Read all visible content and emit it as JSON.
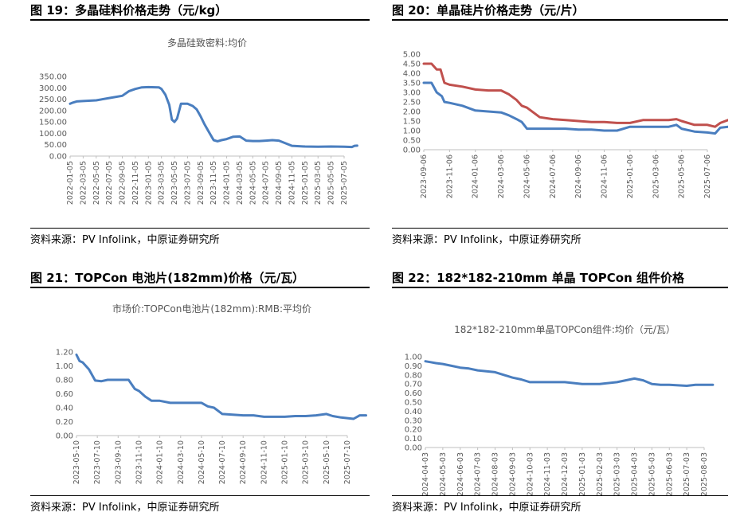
{
  "charts": [
    {
      "figure_title": "图 19：多晶硅料价格走势（元/kg）",
      "source": "资料来源：PV Infolink，中原证券研究所",
      "chart_data": {
        "type": "line",
        "title": "多晶硅致密料:均价",
        "xlabel": "",
        "ylabel": "",
        "ylim": [
          0,
          350
        ],
        "yticks": [
          "0.00",
          "50.00",
          "100.00",
          "150.00",
          "200.00",
          "250.00",
          "300.00",
          "350.00"
        ],
        "xtick_labels": [
          "2022-01-05",
          "2022-03-05",
          "2022-05-05",
          "2022-07-05",
          "2022-09-05",
          "2022-11-05",
          "2023-01-05",
          "2023-03-05",
          "2023-05-05",
          "2023-07-05",
          "2023-09-05",
          "2023-11-05",
          "2024-01-05",
          "2024-03-05",
          "2024-05-05",
          "2024-07-05",
          "2024-09-05",
          "2024-11-05",
          "2025-01-05",
          "2025-03-05",
          "2025-05-05",
          "2025-07-05"
        ],
        "grid": false,
        "series": [
          {
            "color": "#4a7ebf",
            "x": [
              0,
              0.2,
              0.5,
              1,
              2,
              3,
              4,
              4.5,
              5,
              5.5,
              6,
              6.8,
              7,
              7.3,
              7.6,
              7.8,
              8,
              8.2,
              8.5,
              9,
              9.4,
              9.7,
              10,
              10.3,
              10.6,
              11,
              11.3,
              11.6,
              12,
              12.5,
              13,
              13.5,
              14,
              14.5,
              15,
              15.5,
              16,
              17,
              18,
              19,
              20,
              21,
              21.6,
              21.8,
              22
            ],
            "y": [
              230,
              235,
              240,
              242,
              245,
              255,
              265,
              285,
              295,
              302,
              303,
              302,
              295,
              270,
              225,
              160,
              150,
              165,
              230,
              230,
              220,
              205,
              175,
              140,
              110,
              70,
              65,
              70,
              75,
              85,
              86,
              68,
              66,
              66,
              68,
              70,
              68,
              45,
              42,
              41,
              42,
              41,
              40,
              45,
              46
            ]
          }
        ]
      }
    },
    {
      "figure_title": "图 20：单晶硅片价格走势（元/片）",
      "source": "资料来源：PV Infolink，中原证券研究所",
      "chart_data": {
        "type": "line",
        "title": "",
        "xlabel": "",
        "ylabel": "",
        "ylim": [
          0,
          5
        ],
        "yticks": [
          "0.00",
          "0.50",
          "1.00",
          "1.50",
          "2.00",
          "2.50",
          "3.00",
          "3.50",
          "4.00",
          "4.50",
          "5.00"
        ],
        "xtick_labels": [
          "2023-09-06",
          "2023-11-06",
          "2024-01-06",
          "2024-03-06",
          "2024-05-06",
          "2024-07-06",
          "2024-09-06",
          "2024-11-06",
          "2025-01-06",
          "2025-03-06",
          "2025-05-06",
          "2025-07-06"
        ],
        "grid": false,
        "series": [
          {
            "color": "#c0504d",
            "x": [
              0,
              0.3,
              0.5,
              0.65,
              0.8,
              1,
              1.5,
              2,
              2.5,
              3,
              3.3,
              3.6,
              3.8,
              4,
              4.5,
              5,
              5.5,
              6,
              6.5,
              7,
              7.5,
              8,
              8.5,
              9,
              9.5,
              9.8,
              10,
              10.5,
              11,
              11.3,
              11.5,
              11.8,
              12
            ],
            "y": [
              4.5,
              4.5,
              4.2,
              4.2,
              3.5,
              3.4,
              3.3,
              3.15,
              3.1,
              3.1,
              2.9,
              2.6,
              2.3,
              2.2,
              1.7,
              1.6,
              1.55,
              1.5,
              1.45,
              1.45,
              1.4,
              1.4,
              1.55,
              1.55,
              1.55,
              1.6,
              1.5,
              1.3,
              1.3,
              1.2,
              1.4,
              1.55,
              1.6
            ]
          },
          {
            "color": "#4a7ebf",
            "x": [
              0,
              0.3,
              0.5,
              0.7,
              0.8,
              1,
              1.5,
              2,
              2.5,
              3,
              3.3,
              3.6,
              3.8,
              4,
              4.5,
              5,
              5.5,
              6,
              6.5,
              7,
              7.5,
              8,
              8.5,
              9,
              9.5,
              9.8,
              10,
              10.5,
              11,
              11.3,
              11.5,
              11.8,
              12
            ],
            "y": [
              3.5,
              3.5,
              3.0,
              2.8,
              2.5,
              2.45,
              2.3,
              2.05,
              2.0,
              1.95,
              1.8,
              1.6,
              1.45,
              1.1,
              1.1,
              1.1,
              1.1,
              1.05,
              1.05,
              1.0,
              1.0,
              1.2,
              1.2,
              1.2,
              1.2,
              1.3,
              1.1,
              0.95,
              0.9,
              0.85,
              1.15,
              1.2,
              1.25
            ]
          }
        ]
      }
    },
    {
      "figure_title": "图 21：TOPCon 电池片(182mm)价格（元/瓦）",
      "source": "资料来源：PV Infolink，中原证券研究所",
      "chart_data": {
        "type": "line",
        "title": "市场价:TOPCon电池片(182mm):RMB:平均价",
        "xlabel": "",
        "ylabel": "",
        "ylim": [
          0,
          1.2
        ],
        "yticks": [
          "0.00",
          "0.20",
          "0.40",
          "0.60",
          "0.80",
          "1.00",
          "1.20"
        ],
        "xtick_labels": [
          "2023-05-10",
          "2023-07-10",
          "2023-09-10",
          "2023-11-10",
          "2024-01-10",
          "2024-03-10",
          "2024-05-10",
          "2024-07-10",
          "2024-09-10",
          "2024-11-10",
          "2025-01-10",
          "2025-03-10",
          "2025-05-10",
          "2025-07-10"
        ],
        "grid": false,
        "series": [
          {
            "color": "#4a7ebf",
            "x": [
              0,
              0.15,
              0.3,
              0.6,
              0.9,
              1.2,
              1.5,
              2,
              2.5,
              2.8,
              3,
              3.3,
              3.6,
              4,
              4.5,
              5,
              5.5,
              6,
              6.3,
              6.6,
              7,
              7.5,
              8,
              8.5,
              9,
              9.5,
              10,
              10.5,
              11,
              11.5,
              12,
              12.3,
              12.7,
              13,
              13.3,
              13.6,
              13.9
            ],
            "y": [
              1.16,
              1.07,
              1.05,
              0.95,
              0.79,
              0.78,
              0.8,
              0.8,
              0.8,
              0.67,
              0.64,
              0.56,
              0.5,
              0.5,
              0.47,
              0.47,
              0.47,
              0.47,
              0.42,
              0.4,
              0.31,
              0.3,
              0.29,
              0.29,
              0.27,
              0.27,
              0.27,
              0.28,
              0.28,
              0.29,
              0.31,
              0.28,
              0.26,
              0.25,
              0.24,
              0.29,
              0.29
            ]
          }
        ]
      }
    },
    {
      "figure_title": "图 22：182*182-210mm 单晶 TOPCon 组件价格",
      "source": "资料来源：PV Infolink，中原证券研究所",
      "chart_data": {
        "type": "line",
        "title": "182*182-210mm单晶TOPCon组件:均价（元/瓦）",
        "xlabel": "",
        "ylabel": "",
        "ylim": [
          0,
          1.0
        ],
        "yticks": [
          "0.00",
          "0.10",
          "0.20",
          "0.30",
          "0.40",
          "0.50",
          "0.60",
          "0.70",
          "0.80",
          "0.90",
          "1.00"
        ],
        "xtick_labels": [
          "2024-04-03",
          "2024-05-03",
          "2024-06-03",
          "2024-07-03",
          "2024-08-03",
          "2024-09-03",
          "2024-10-03",
          "2024-11-03",
          "2024-12-03",
          "2025-01-03",
          "2025-02-03",
          "2025-03-03",
          "2025-04-03",
          "2025-05-03",
          "2025-06-03",
          "2025-07-03",
          "2025-08-03"
        ],
        "grid": false,
        "series": [
          {
            "color": "#4a7ebf",
            "x": [
              0,
              0.3,
              0.6,
              1,
              1.5,
              2,
              2.5,
              3,
              3.5,
              4,
              4.5,
              5,
              5.5,
              6,
              7,
              8,
              9,
              10,
              11,
              12,
              12.5,
              13,
              13.5,
              14,
              15,
              15.5,
              16,
              16.5
            ],
            "y": [
              0.95,
              0.94,
              0.93,
              0.92,
              0.9,
              0.88,
              0.87,
              0.85,
              0.84,
              0.83,
              0.8,
              0.77,
              0.75,
              0.72,
              0.72,
              0.72,
              0.7,
              0.7,
              0.72,
              0.76,
              0.74,
              0.7,
              0.69,
              0.69,
              0.68,
              0.69,
              0.69,
              0.69
            ]
          }
        ]
      }
    }
  ]
}
